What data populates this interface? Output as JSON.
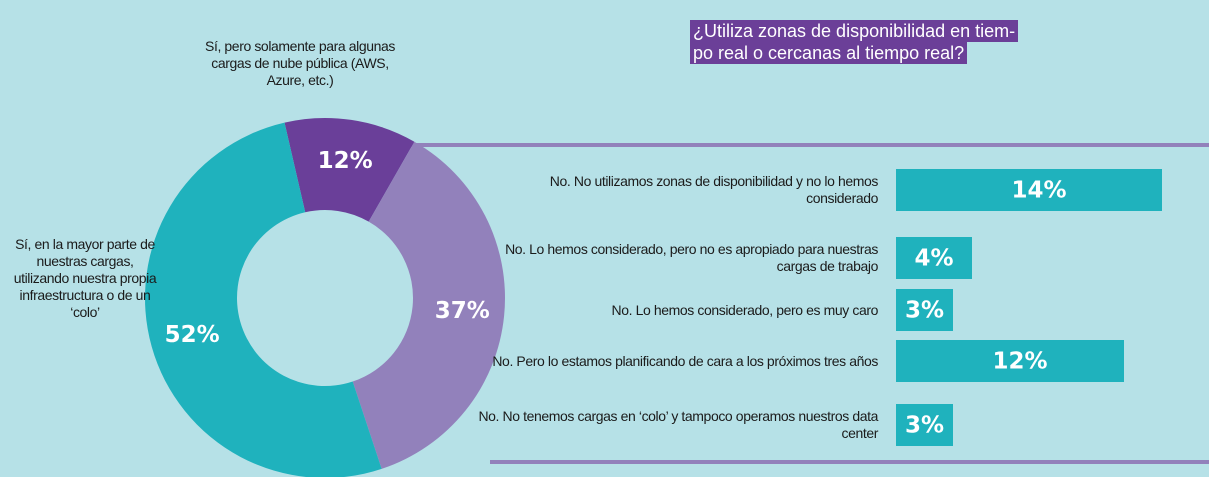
{
  "title": [
    "¿Utiliza zonas de disponibilidad en tiem-",
    "po real o cercanas al tiempo real?"
  ],
  "chart_data": [
    {
      "type": "donut",
      "categories": [
        "Sí, pero solamente para algunas cargas de nube pública (AWS, Azure, etc.)",
        null,
        "Sí, en la mayor parte de nuestras cargas, utilizando nuestra propia infraestructura o de un ‘colo’"
      ],
      "values": [
        12,
        37,
        52
      ],
      "value_labels": [
        "12%",
        "37%",
        "52%"
      ],
      "colors": [
        "#6a3f99",
        "#9281bb",
        "#1fb2bd"
      ]
    },
    {
      "type": "barh",
      "categories": [
        "No. No utilizamos zonas de disponibilidad y no lo hemos considerado",
        "No. Lo hemos considerado, pero no es apropiado para nuestras cargas de trabajo",
        "No. Lo hemos considerado, pero es muy caro",
        "No. Pero lo estamos planificando de cara a los próximos tres años",
        "No. No tenemos cargas en ‘colo’ y tampoco operamos nuestros data center"
      ],
      "values": [
        14,
        4,
        3,
        12,
        3
      ],
      "value_labels": [
        "14%",
        "4%",
        "3%",
        "12%",
        "3%"
      ],
      "color": "#1fb2bd"
    }
  ]
}
